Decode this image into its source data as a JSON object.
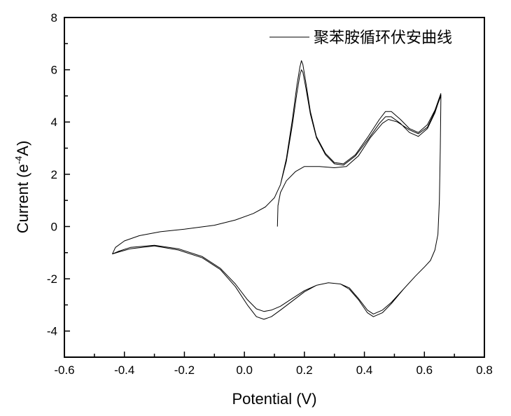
{
  "chart_data": {
    "type": "line",
    "title": "",
    "xlabel": "Potential (V)",
    "ylabel": "Current (e⁻⁴A)",
    "ylabel_parts": {
      "pre": "Current (e",
      "sup": "-4",
      "post": "A)"
    },
    "xlim": [
      -0.6,
      0.8
    ],
    "ylim": [
      -5,
      8
    ],
    "xticks": [
      -0.6,
      -0.4,
      -0.2,
      0.0,
      0.2,
      0.4,
      0.6,
      0.8
    ],
    "xtick_labels": [
      "-0.6",
      "-0.4",
      "-0.2",
      "0.0",
      "0.2",
      "0.4",
      "0.6",
      "0.8"
    ],
    "yticks": [
      -4,
      -2,
      0,
      2,
      4,
      6,
      8
    ],
    "ytick_labels": [
      "-4",
      "-2",
      "0",
      "2",
      "4",
      "6",
      "8"
    ],
    "grid": false,
    "legend": {
      "position": "top-right",
      "entries": [
        "聚苯胺循环伏安曲线"
      ]
    },
    "color": "#000000",
    "series": [
      {
        "name": "聚苯胺循环伏安曲线",
        "x": [
          0.11,
          0.112,
          0.12,
          0.14,
          0.17,
          0.2,
          0.25,
          0.3,
          0.34,
          0.38,
          0.42,
          0.46,
          0.48,
          0.51,
          0.55,
          0.58,
          0.61,
          0.635,
          0.655,
          0.653,
          0.65,
          0.645,
          0.635,
          0.62,
          0.6,
          0.57,
          0.53,
          0.49,
          0.46,
          0.43,
          0.41,
          0.38,
          0.35,
          0.32,
          0.28,
          0.24,
          0.2,
          0.16,
          0.12,
          0.09,
          0.065,
          0.04,
          0.01,
          -0.03,
          -0.08,
          -0.14,
          -0.22,
          -0.3,
          -0.38,
          -0.42,
          -0.44,
          -0.43,
          -0.4,
          -0.35,
          -0.28,
          -0.2,
          -0.1,
          -0.03,
          0.03,
          0.07,
          0.1,
          0.12,
          0.14,
          0.16,
          0.175,
          0.185,
          0.19,
          0.195,
          0.205,
          0.22,
          0.24,
          0.27,
          0.3,
          0.33,
          0.37,
          0.41,
          0.45,
          0.47,
          0.49,
          0.52,
          0.55,
          0.58,
          0.61,
          0.635,
          0.655,
          0.653,
          0.65,
          0.645,
          0.635,
          0.62,
          0.6,
          0.57,
          0.53,
          0.49,
          0.46,
          0.43,
          0.41,
          0.38,
          0.35,
          0.32,
          0.28,
          0.24,
          0.2,
          0.16,
          0.12,
          0.09,
          0.065,
          0.04,
          0.01,
          -0.03,
          -0.08,
          -0.14,
          -0.22,
          -0.3,
          -0.38,
          -0.42,
          -0.44,
          -0.43,
          -0.4,
          -0.35,
          -0.28,
          -0.2,
          -0.1,
          -0.03,
          0.03,
          0.07,
          0.1,
          0.12,
          0.14,
          0.16,
          0.175,
          0.185,
          0.19,
          0.195,
          0.205,
          0.22,
          0.24,
          0.27,
          0.3,
          0.33,
          0.37,
          0.41,
          0.45,
          0.47,
          0.49,
          0.52,
          0.55,
          0.58,
          0.61,
          0.635,
          0.655
        ],
        "y": [
          0.0,
          0.8,
          1.3,
          1.75,
          2.1,
          2.3,
          2.3,
          2.25,
          2.3,
          2.7,
          3.4,
          3.95,
          4.1,
          4.0,
          3.7,
          3.55,
          3.8,
          4.4,
          5.0,
          3.0,
          1.0,
          -0.3,
          -0.9,
          -1.3,
          -1.55,
          -1.9,
          -2.4,
          -2.9,
          -3.2,
          -3.35,
          -3.2,
          -2.75,
          -2.35,
          -2.2,
          -2.15,
          -2.25,
          -2.45,
          -2.75,
          -3.05,
          -3.2,
          -3.25,
          -3.15,
          -2.8,
          -2.2,
          -1.6,
          -1.15,
          -0.85,
          -0.72,
          -0.8,
          -0.95,
          -1.05,
          -0.8,
          -0.55,
          -0.35,
          -0.2,
          -0.1,
          0.05,
          0.25,
          0.5,
          0.75,
          1.1,
          1.6,
          2.5,
          3.9,
          5.1,
          5.8,
          6.0,
          5.9,
          5.3,
          4.3,
          3.4,
          2.75,
          2.4,
          2.35,
          2.7,
          3.3,
          3.95,
          4.2,
          4.2,
          3.95,
          3.6,
          3.45,
          3.75,
          4.35,
          5.05,
          3.0,
          1.0,
          -0.3,
          -0.9,
          -1.3,
          -1.55,
          -1.9,
          -2.4,
          -2.95,
          -3.3,
          -3.45,
          -3.3,
          -2.8,
          -2.4,
          -2.2,
          -2.15,
          -2.25,
          -2.5,
          -2.85,
          -3.2,
          -3.45,
          -3.55,
          -3.45,
          -3.0,
          -2.3,
          -1.65,
          -1.2,
          -0.9,
          -0.74,
          -0.85,
          -0.98,
          -1.05,
          -0.8,
          -0.55,
          -0.35,
          -0.2,
          -0.1,
          0.05,
          0.25,
          0.5,
          0.75,
          1.1,
          1.6,
          2.6,
          4.1,
          5.4,
          6.1,
          6.35,
          6.2,
          5.5,
          4.4,
          3.45,
          2.8,
          2.45,
          2.4,
          2.75,
          3.4,
          4.1,
          4.4,
          4.4,
          4.1,
          3.75,
          3.6,
          3.9,
          4.45,
          5.1
        ]
      }
    ]
  }
}
